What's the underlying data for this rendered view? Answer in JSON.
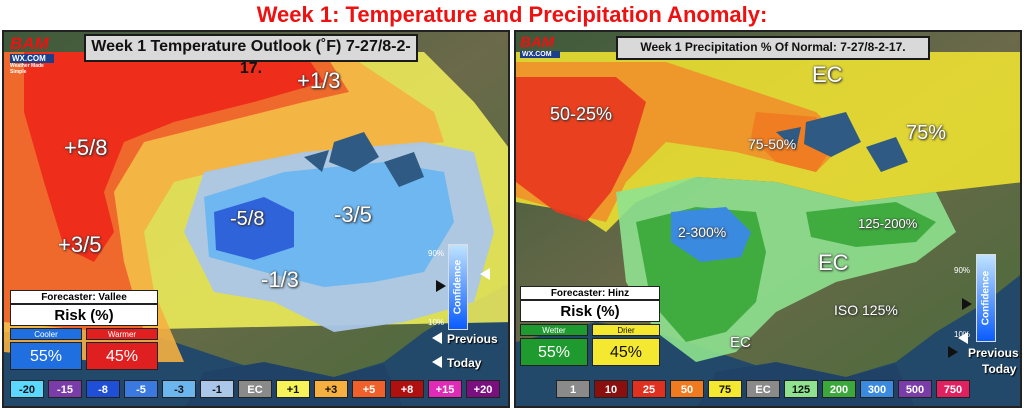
{
  "title": "Week 1: Temperature and Precipitation Anomaly:",
  "logo": {
    "top": "BAM",
    "mid": "WX.COM",
    "tagline": "Weather Made Simple"
  },
  "temp_panel": {
    "title": "Week 1 Temperature Outlook (˚F) 7-27/8-2-17.",
    "labels": {
      "nw": "+5/8",
      "west": "+3/5",
      "north": "+1/3",
      "core": "-5/8",
      "east": "-3/5",
      "south": "-1/3"
    },
    "forecaster": "Forecaster: Vallee",
    "risk_title": "Risk (%)",
    "cooler_label": "Cooler",
    "warmer_label": "Warmer",
    "cooler_value": "55%",
    "warmer_value": "45%",
    "confidence": {
      "label": "Confidence",
      "high": "90%",
      "low": "10%",
      "previous": "Previous",
      "today": "Today"
    },
    "legend": [
      "-20",
      "-15",
      "-8",
      "-5",
      "-3",
      "-1",
      "EC",
      "+1",
      "+3",
      "+5",
      "+8",
      "+15",
      "+20"
    ]
  },
  "precip_panel": {
    "title": "Week 1 Precipitation % Of Normal: 7-27/8-2-17.",
    "labels": {
      "ec_north": "EC",
      "nw": "50-25%",
      "midwest": "75-50%",
      "ne": "75%",
      "plains": "2-300%",
      "mid_atl": "125-200%",
      "ec_se": "EC",
      "iso": "ISO 125%",
      "ec_sw": "EC"
    },
    "forecaster": "Forecaster: Hinz",
    "risk_title": "Risk (%)",
    "wetter_label": "Wetter",
    "drier_label": "Drier",
    "wetter_value": "55%",
    "drier_value": "45%",
    "confidence": {
      "label": "Confidence",
      "high": "90%",
      "low": "10%",
      "previous": "Previous",
      "today": "Today"
    },
    "legend": [
      "1",
      "10",
      "25",
      "50",
      "75",
      "EC",
      "125",
      "200",
      "300",
      "500",
      "750"
    ]
  },
  "colors": {
    "title_red": "#e11111",
    "temp_legend": [
      "#5ad8ff",
      "#7a3ca8",
      "#1f4fd6",
      "#3a7ae0",
      "#6cb6f0",
      "#aac6e8",
      "#8a8a8a",
      "#f5f25a",
      "#f5b041",
      "#f0602a",
      "#b01010",
      "#e02ab8",
      "#7a1080"
    ],
    "precip_legend": [
      "#8a8a8a",
      "#8a1010",
      "#e03020",
      "#f07a20",
      "#f5e830",
      "#8a8a8a",
      "#8fe28f",
      "#3aa83a",
      "#3a8ae0",
      "#7a3ca8",
      "#e02060"
    ]
  }
}
